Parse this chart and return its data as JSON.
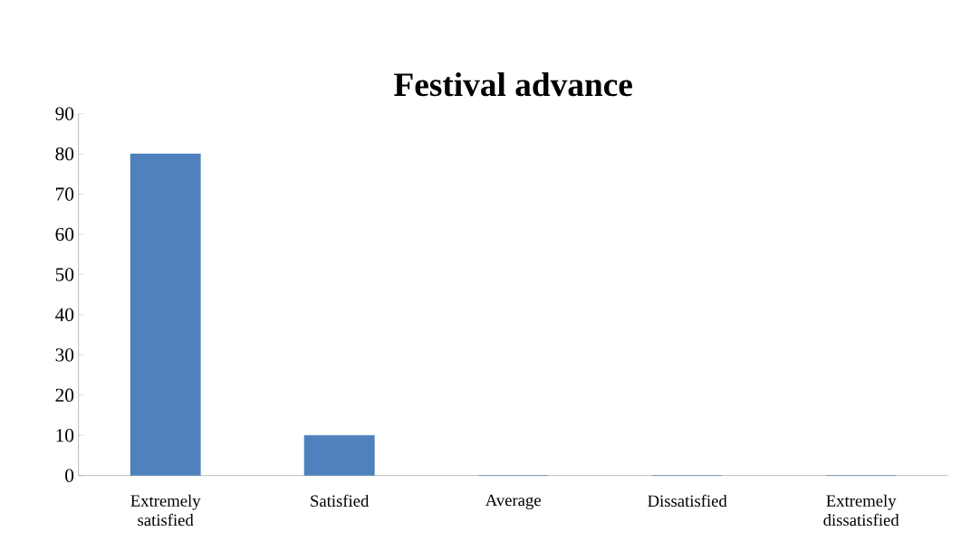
{
  "chart_data": {
    "type": "bar",
    "title": "Festival advance",
    "categories": [
      "Extremely satisfied",
      "Satisfied",
      "Average",
      "Dissatisfied",
      "Extremely dissatisfied"
    ],
    "values": [
      80,
      10,
      0,
      0,
      0
    ],
    "color": "#4f81bd",
    "ylim": [
      0,
      90
    ],
    "yticks": [
      0,
      10,
      20,
      30,
      40,
      50,
      60,
      70,
      80,
      90
    ],
    "grid": false
  }
}
